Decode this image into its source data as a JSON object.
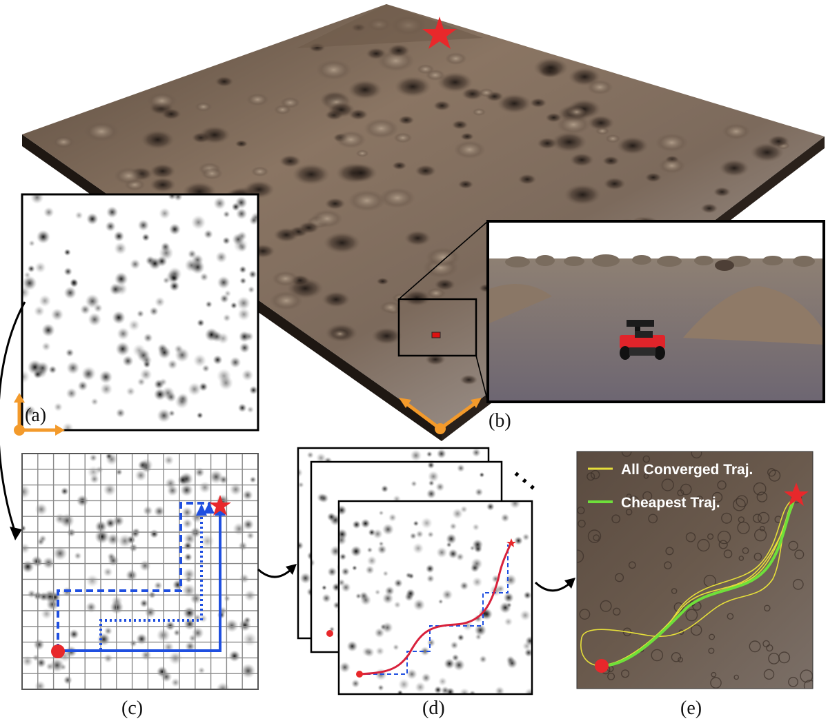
{
  "figure": {
    "labels": {
      "a": "(a)",
      "b": "(b)",
      "c": "(c)",
      "d": "(d)",
      "e": "(e)"
    },
    "ellipsis": "⋯",
    "legend": {
      "converged": "All Converged Traj.",
      "cheapest": "Cheapest Traj."
    },
    "colors": {
      "start": "#e8282b",
      "goal": "#e8282b",
      "grid_path": "#1f4fe0",
      "optimized_path": "#d8213b",
      "converged_traj": "#e6df3a",
      "cheapest_traj": "#6ee03a",
      "axes": "#f39a2b",
      "terrain_light": "#8c7a66",
      "terrain_dark": "#3c2f27"
    }
  }
}
